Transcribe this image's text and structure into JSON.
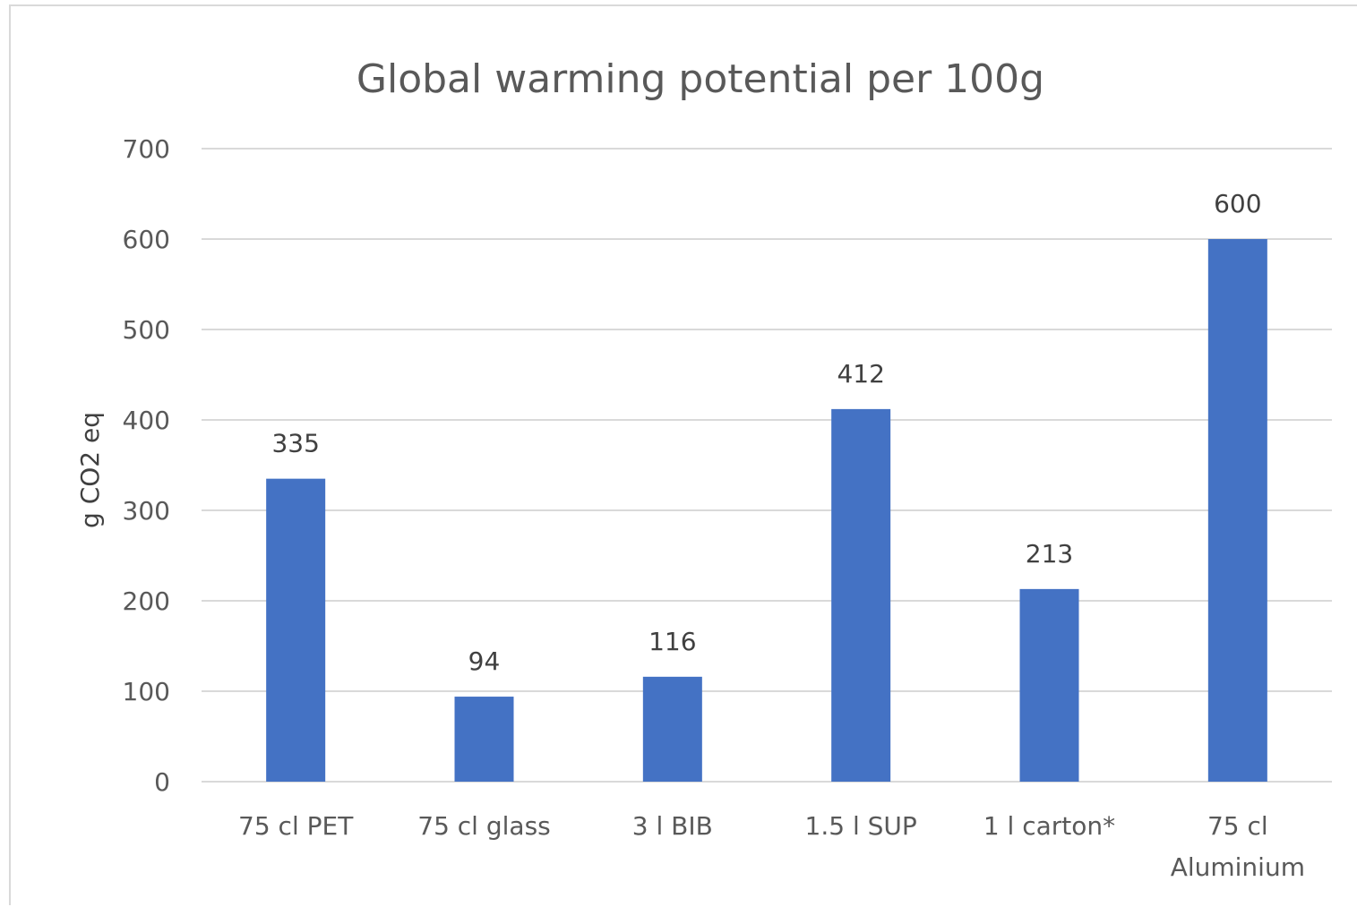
{
  "chart_data": {
    "type": "bar",
    "title": "Global warming potential per 100g",
    "xlabel": "",
    "ylabel": "g CO2 eq",
    "categories": [
      [
        "75 cl PET"
      ],
      [
        "75 cl glass"
      ],
      [
        "3 l BIB"
      ],
      [
        "1.5 l SUP"
      ],
      [
        "1 l carton*"
      ],
      [
        "75 cl",
        "Aluminium"
      ]
    ],
    "values": [
      335,
      94,
      116,
      412,
      213,
      600
    ],
    "data_labels": [
      "335",
      "94",
      "116",
      "412",
      "213",
      "600"
    ],
    "ylim": [
      0,
      700
    ],
    "yticks": [
      0,
      100,
      200,
      300,
      400,
      500,
      600,
      700
    ],
    "grid": true,
    "legend": "none",
    "colors": {
      "bar": "#4472c4",
      "grid": "#d9d9d9",
      "text": "#595959"
    }
  }
}
